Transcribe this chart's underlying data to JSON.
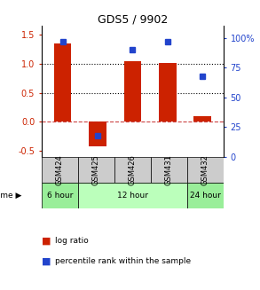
{
  "title": "GDS5 / 9902",
  "samples": [
    "GSM424",
    "GSM425",
    "GSM426",
    "GSM431",
    "GSM432"
  ],
  "log_ratio": [
    1.35,
    -0.42,
    1.05,
    1.02,
    0.09
  ],
  "percentile_rank": [
    97,
    18,
    90,
    97,
    68
  ],
  "bar_color": "#cc2200",
  "dot_color": "#2244cc",
  "ylim_left": [
    -0.6,
    1.65
  ],
  "ylim_right": [
    0,
    110
  ],
  "left_ticks": [
    -0.5,
    0.0,
    0.5,
    1.0,
    1.5
  ],
  "right_ticks": [
    0,
    25,
    50,
    75,
    100
  ],
  "dotted_lines": [
    0.5,
    1.0
  ],
  "dashed_zero": 0.0,
  "sample_bg": "#cccccc",
  "time_infos": [
    {
      "label": "6 hour",
      "start": 0,
      "end": 1,
      "color": "#99ee99"
    },
    {
      "label": "12 hour",
      "start": 1,
      "end": 4,
      "color": "#bbffbb"
    },
    {
      "label": "24 hour",
      "start": 4,
      "end": 5,
      "color": "#99ee99"
    }
  ],
  "legend_red": "log ratio",
  "legend_blue": "percentile rank within the sample",
  "bar_width": 0.5
}
